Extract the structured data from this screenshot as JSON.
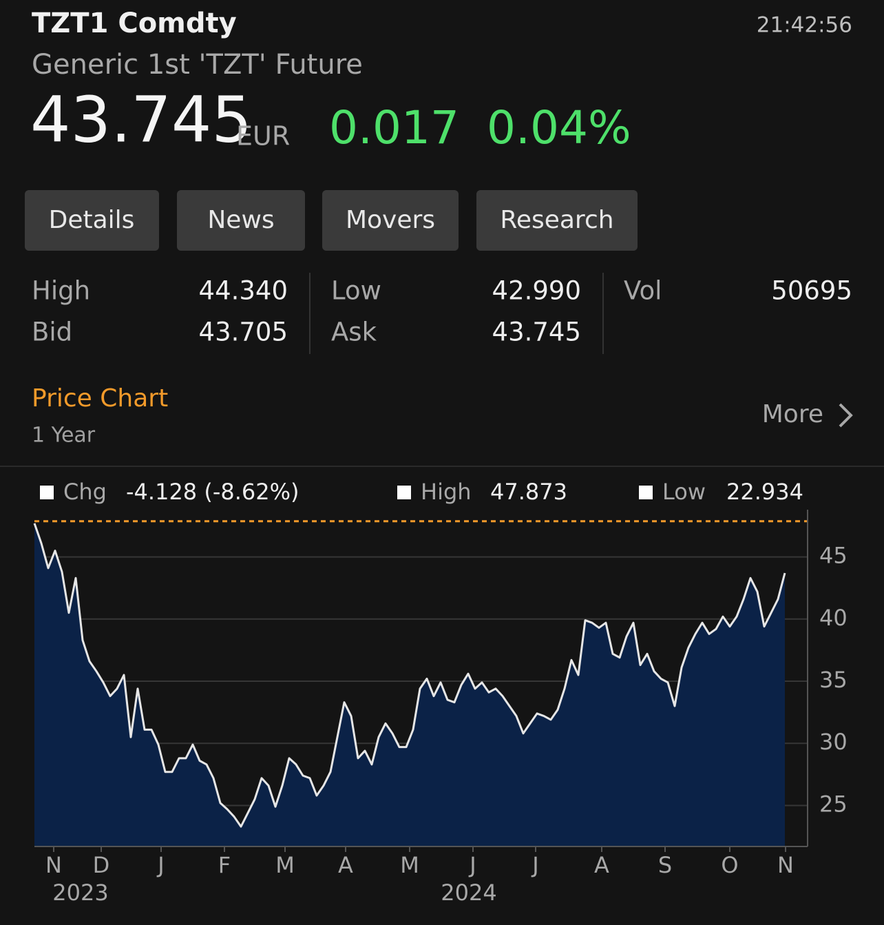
{
  "header": {
    "ticker": "TZT1 Comdty",
    "time": "21:42:56",
    "name": "Generic 1st 'TZT' Future"
  },
  "quote": {
    "price": "43.745",
    "currency": "EUR",
    "change": "0.017",
    "change_pct": "0.04%"
  },
  "tabs": [
    "Details",
    "News",
    "Movers",
    "Research"
  ],
  "stats": [
    [
      "High",
      "44.340"
    ],
    [
      "Bid",
      "43.705"
    ],
    [
      "Low",
      "42.990"
    ],
    [
      "Ask",
      "43.745"
    ],
    [
      "Vol",
      "50695"
    ]
  ],
  "section": {
    "title": "Price Chart",
    "period": "1 Year",
    "more": "More"
  },
  "chart_data": {
    "type": "area",
    "legend": {
      "chg_label": "Chg",
      "chg_value": "-4.128 (-8.62%)",
      "high_label": "High",
      "high": 47.873,
      "low_label": "Low",
      "low": 22.934
    },
    "values": [
      47.7,
      46.1,
      44.1,
      45.5,
      43.8,
      40.5,
      43.3,
      38.3,
      36.6,
      35.8,
      34.9,
      33.8,
      34.4,
      35.5,
      30.5,
      34.4,
      31.1,
      31.1,
      29.9,
      27.7,
      27.7,
      28.8,
      28.8,
      29.9,
      28.6,
      28.3,
      27.2,
      25.2,
      24.7,
      24.1,
      23.3,
      24.4,
      25.5,
      27.2,
      26.6,
      24.9,
      26.6,
      28.8,
      28.3,
      27.4,
      27.2,
      25.8,
      26.6,
      27.7,
      30.5,
      33.3,
      32.2,
      28.8,
      29.4,
      28.3,
      30.5,
      31.6,
      30.8,
      29.7,
      29.7,
      31.1,
      34.4,
      35.2,
      33.8,
      34.9,
      33.5,
      33.3,
      34.7,
      35.6,
      34.4,
      34.9,
      34.1,
      34.4,
      33.8,
      33.0,
      32.2,
      30.8,
      31.6,
      32.4,
      32.2,
      31.9,
      32.7,
      34.4,
      36.7,
      35.5,
      39.9,
      39.7,
      39.3,
      39.7,
      37.2,
      36.9,
      38.6,
      39.7,
      36.3,
      37.2,
      35.8,
      35.2,
      34.9,
      33.0,
      36.1,
      37.7,
      38.8,
      39.7,
      38.8,
      39.2,
      40.2,
      39.4,
      40.2,
      41.6,
      43.3,
      42.2,
      39.4,
      40.5,
      41.6,
      43.7
    ],
    "line_color": "#e6e6e6",
    "fill_color": "#0b2247",
    "high_line_color": "#f39a2a",
    "xlim": [
      0,
      109
    ],
    "ylim": [
      21.7,
      48.8
    ],
    "yticks": [
      25,
      30,
      35,
      40,
      45
    ],
    "grid": true,
    "xticks": [
      {
        "value": 2.8,
        "label": "N"
      },
      {
        "value": 9.7,
        "label": "D"
      },
      {
        "value": 18.4,
        "label": "J"
      },
      {
        "value": 27.6,
        "label": "F"
      },
      {
        "value": 36.4,
        "label": "M"
      },
      {
        "value": 45.2,
        "label": "A"
      },
      {
        "value": 54.5,
        "label": "M"
      },
      {
        "value": 63.7,
        "label": "J"
      },
      {
        "value": 72.8,
        "label": "J"
      },
      {
        "value": 82.4,
        "label": "A"
      },
      {
        "value": 91.6,
        "label": "S"
      },
      {
        "value": 101,
        "label": "O"
      },
      {
        "value": 109.1,
        "label": "N"
      }
    ],
    "year_labels": [
      {
        "value": 6.7,
        "label": "2023"
      },
      {
        "value": 63.1,
        "label": "2024"
      }
    ]
  }
}
